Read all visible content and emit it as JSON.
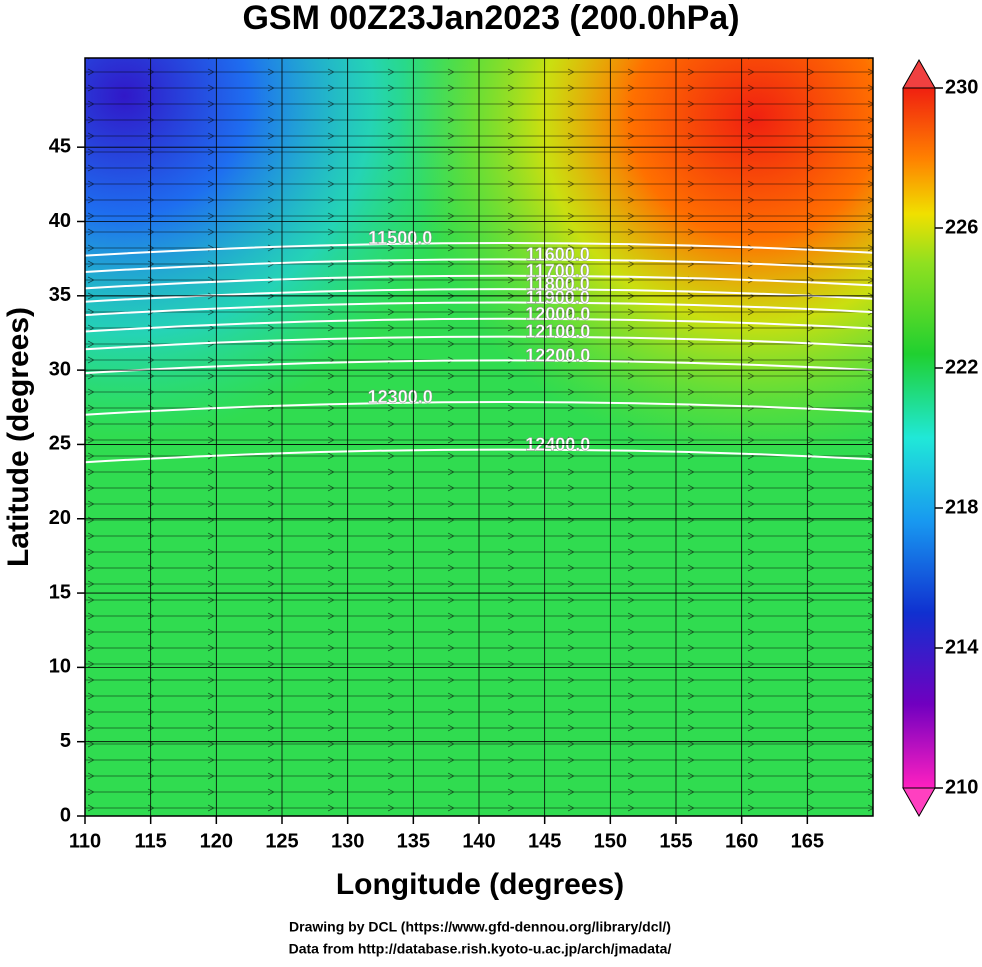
{
  "chart_data": {
    "type": "map",
    "title": "GSM 00Z23Jan2023 (200.0hPa)",
    "xlabel": "Longitude (degrees)",
    "ylabel": "Latitude  (degrees)",
    "xlim": [
      110,
      170
    ],
    "ylim": [
      0,
      51
    ],
    "xticks": [
      110,
      115,
      120,
      125,
      130,
      135,
      140,
      145,
      150,
      155,
      160,
      165
    ],
    "yticks": [
      0,
      5,
      10,
      15,
      20,
      25,
      30,
      35,
      40,
      45
    ],
    "grid": true,
    "colorbar": {
      "lim": [
        210,
        230
      ],
      "ticks": [
        210,
        214,
        218,
        222,
        226,
        230
      ]
    },
    "contours": [
      {
        "value": 11500,
        "label": "11500.0"
      },
      {
        "value": 11600,
        "label": "11600.0"
      },
      {
        "value": 11700,
        "label": "11700.0"
      },
      {
        "value": 11800,
        "label": "11800.0"
      },
      {
        "value": 11900,
        "label": "11900.0"
      },
      {
        "value": 12000,
        "label": "12000.0"
      },
      {
        "value": 12100,
        "label": "12100.0"
      },
      {
        "value": 12200,
        "label": "12200.0"
      },
      {
        "value": 12300,
        "label": "12300.0"
      },
      {
        "value": 12400,
        "label": "12400.0"
      }
    ],
    "credits": [
      "Drawing by DCL (https://www.gfd-dennou.org/library/dcl/)",
      "Data from http://database.rish.kyoto-u.ac.jp/arch/jmadata/"
    ]
  }
}
